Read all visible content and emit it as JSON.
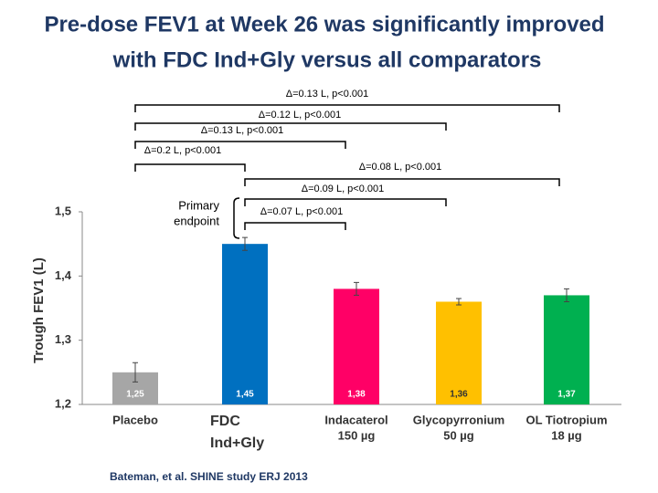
{
  "chart_data": {
    "type": "bar",
    "title": [
      "Pre-dose FEV1 at Week 26 was significantly improved",
      "with FDC Ind+Gly versus all comparators"
    ],
    "y_label": "Trough FEV1 (L)",
    "categories": [
      [
        "Placebo"
      ],
      [
        "FDC",
        "Ind+Gly"
      ],
      [
        "Indacaterol",
        "150 µg"
      ],
      [
        "Glycopyrronium",
        "50 µg"
      ],
      [
        "OL Tiotropium",
        "18 µg"
      ]
    ],
    "values": [
      1.25,
      1.45,
      1.38,
      1.36,
      1.37
    ],
    "value_labels": [
      "1,25",
      "1,45",
      "1,38",
      "1,36",
      "1,37"
    ],
    "errors": [
      0.015,
      0.01,
      0.01,
      0.005,
      0.01
    ],
    "colors": [
      "#a6a6a6",
      "#0070c0",
      "#ff0066",
      "#ffc000",
      "#00b050"
    ],
    "ylim": [
      1.2,
      1.5
    ],
    "yticks": [
      {
        "value": 1.2,
        "label": "1,2"
      },
      {
        "value": 1.3,
        "label": "1,3"
      },
      {
        "value": 1.4,
        "label": "1,4"
      },
      {
        "value": 1.5,
        "label": "1,5"
      }
    ],
    "annotations": [
      "Δ=0.13 L, p<0.001",
      "Δ=0.12 L, p<0.001",
      "Δ=0.13 L, p<0.001",
      "Δ=0.2 L, p<0.001",
      "Δ=0.08 L, p<0.001",
      "Δ=0.09 L, p<0.001",
      "Δ=0.07 L, p<0.001"
    ],
    "primary_endpoint": [
      "Primary",
      "endpoint"
    ],
    "source": "Bateman, et al. SHINE study ERJ 2013"
  }
}
